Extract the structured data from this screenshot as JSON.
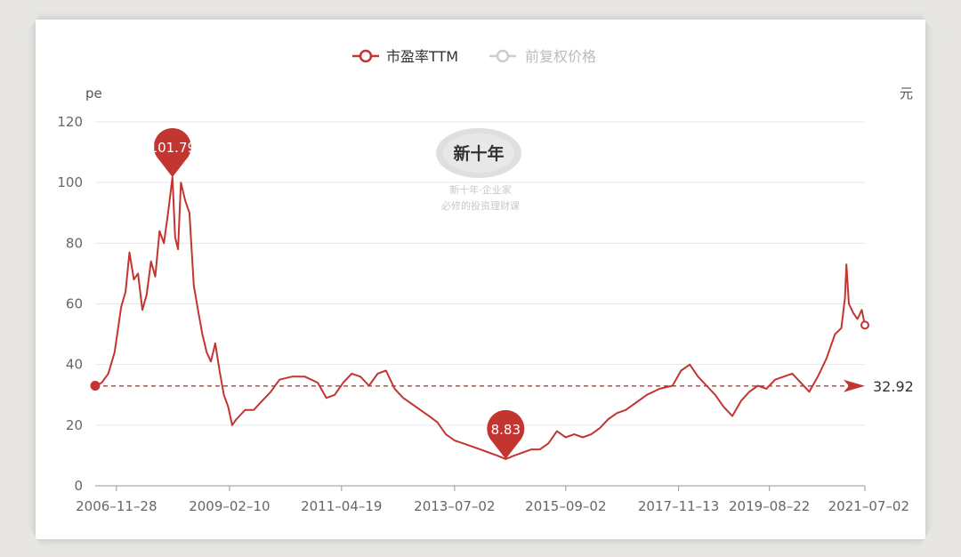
{
  "chart_data": {
    "type": "line",
    "legend": [
      {
        "name": "市盈率TTM",
        "color": "#c23531",
        "active": true
      },
      {
        "name": "前复权价格",
        "color": "#cccccc",
        "active": false
      }
    ],
    "ylabel_left": "pe",
    "ylabel_right": "元",
    "ylim": [
      0,
      120
    ],
    "yticks": [
      0,
      20,
      40,
      60,
      80,
      100,
      120
    ],
    "xlim": [
      "2006-06-30",
      "2021-07-02"
    ],
    "xticks": [
      "2006-11-28",
      "2009-02-10",
      "2011-04-19",
      "2013-07-02",
      "2015-09-02",
      "2017-11-13",
      "2019-08-22",
      "2021-07-02"
    ],
    "grid": true,
    "series": [
      {
        "name": "市盈率TTM",
        "color": "#c23531",
        "points": [
          [
            "2006-06-30",
            33
          ],
          [
            "2006-08-15",
            34
          ],
          [
            "2006-10-01",
            37
          ],
          [
            "2006-11-15",
            44
          ],
          [
            "2007-01-01",
            59
          ],
          [
            "2007-02-01",
            64
          ],
          [
            "2007-03-01",
            77
          ],
          [
            "2007-04-01",
            68
          ],
          [
            "2007-05-01",
            70
          ],
          [
            "2007-06-01",
            58
          ],
          [
            "2007-07-01",
            63
          ],
          [
            "2007-08-01",
            74
          ],
          [
            "2007-09-01",
            69
          ],
          [
            "2007-10-01",
            84
          ],
          [
            "2007-11-01",
            80
          ],
          [
            "2007-12-01",
            90
          ],
          [
            "2008-01-01",
            101.79
          ],
          [
            "2008-01-20",
            82
          ],
          [
            "2008-02-10",
            78
          ],
          [
            "2008-03-01",
            100
          ],
          [
            "2008-04-01",
            94
          ],
          [
            "2008-05-01",
            90
          ],
          [
            "2008-06-01",
            66
          ],
          [
            "2008-07-01",
            58
          ],
          [
            "2008-08-01",
            50
          ],
          [
            "2008-09-01",
            44
          ],
          [
            "2008-10-01",
            41
          ],
          [
            "2008-11-01",
            47
          ],
          [
            "2008-12-01",
            38
          ],
          [
            "2009-01-01",
            30
          ],
          [
            "2009-02-01",
            26
          ],
          [
            "2009-03-01",
            20
          ],
          [
            "2009-04-01",
            22
          ],
          [
            "2009-06-01",
            25
          ],
          [
            "2009-08-01",
            25
          ],
          [
            "2009-10-01",
            28
          ],
          [
            "2009-12-01",
            31
          ],
          [
            "2010-02-01",
            35
          ],
          [
            "2010-05-01",
            36
          ],
          [
            "2010-08-01",
            36
          ],
          [
            "2010-11-01",
            34
          ],
          [
            "2011-01-01",
            29
          ],
          [
            "2011-03-01",
            30
          ],
          [
            "2011-05-01",
            34
          ],
          [
            "2011-07-01",
            37
          ],
          [
            "2011-09-01",
            36
          ],
          [
            "2011-11-01",
            33
          ],
          [
            "2012-01-01",
            37
          ],
          [
            "2012-03-01",
            38
          ],
          [
            "2012-05-01",
            32
          ],
          [
            "2012-07-01",
            29
          ],
          [
            "2012-09-01",
            27
          ],
          [
            "2012-11-01",
            25
          ],
          [
            "2013-01-01",
            23
          ],
          [
            "2013-03-01",
            21
          ],
          [
            "2013-05-01",
            17
          ],
          [
            "2013-07-01",
            15
          ],
          [
            "2013-09-01",
            14
          ],
          [
            "2013-11-01",
            13
          ],
          [
            "2014-01-01",
            12
          ],
          [
            "2014-03-01",
            11
          ],
          [
            "2014-05-01",
            10
          ],
          [
            "2014-07-01",
            8.83
          ],
          [
            "2014-09-01",
            10
          ],
          [
            "2014-11-01",
            11
          ],
          [
            "2015-01-01",
            12
          ],
          [
            "2015-03-01",
            12
          ],
          [
            "2015-05-01",
            14
          ],
          [
            "2015-07-01",
            18
          ],
          [
            "2015-09-01",
            16
          ],
          [
            "2015-11-01",
            17
          ],
          [
            "2016-01-01",
            16
          ],
          [
            "2016-03-01",
            17
          ],
          [
            "2016-05-01",
            19
          ],
          [
            "2016-07-01",
            22
          ],
          [
            "2016-09-01",
            24
          ],
          [
            "2016-11-01",
            25
          ],
          [
            "2017-01-01",
            27
          ],
          [
            "2017-04-01",
            30
          ],
          [
            "2017-07-01",
            32
          ],
          [
            "2017-10-01",
            33
          ],
          [
            "2017-12-01",
            38
          ],
          [
            "2018-02-01",
            40
          ],
          [
            "2018-04-01",
            36
          ],
          [
            "2018-06-01",
            33
          ],
          [
            "2018-08-01",
            30
          ],
          [
            "2018-10-01",
            26
          ],
          [
            "2018-12-01",
            23
          ],
          [
            "2019-02-01",
            28
          ],
          [
            "2019-04-01",
            31
          ],
          [
            "2019-06-01",
            33
          ],
          [
            "2019-08-01",
            32
          ],
          [
            "2019-10-01",
            35
          ],
          [
            "2019-12-01",
            36
          ],
          [
            "2020-02-01",
            37
          ],
          [
            "2020-04-01",
            34
          ],
          [
            "2020-06-01",
            31
          ],
          [
            "2020-08-01",
            36
          ],
          [
            "2020-10-01",
            42
          ],
          [
            "2020-12-01",
            50
          ],
          [
            "2021-01-15",
            52
          ],
          [
            "2021-02-10",
            62
          ],
          [
            "2021-02-20",
            73
          ],
          [
            "2021-03-10",
            60
          ],
          [
            "2021-04-10",
            57
          ],
          [
            "2021-05-10",
            55
          ],
          [
            "2021-06-10",
            58
          ],
          [
            "2021-07-02",
            53
          ]
        ]
      }
    ],
    "markers": [
      {
        "label": "101.79",
        "date": "2008-01-01",
        "value": 101.79
      },
      {
        "label": "8.83",
        "date": "2014-07-01",
        "value": 8.83
      }
    ],
    "mean_line": {
      "value": 32.92,
      "label": "32.92"
    }
  },
  "watermark": {
    "seal_text": "新十年",
    "line1": "新十年·企业家",
    "line2": "必修的投资理财课"
  }
}
